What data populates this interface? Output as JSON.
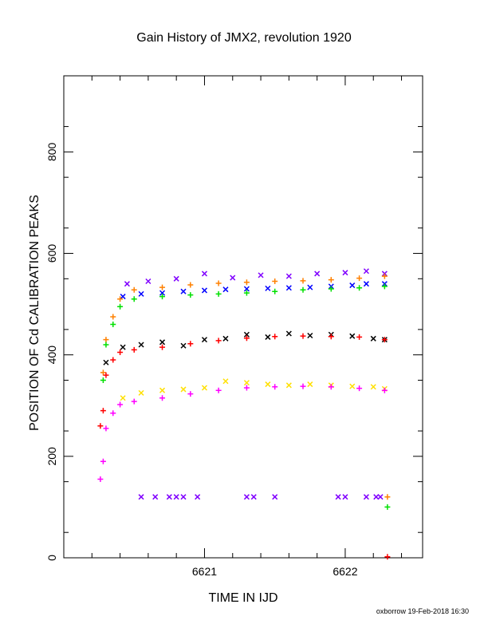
{
  "chart_data": {
    "type": "scatter",
    "title": "Gain History of JMX2, revolution 1920",
    "xlabel": "TIME IN IJD",
    "ylabel": "POSITION OF Cd CALIBRATION PEAKS",
    "xlim": [
      6620.0,
      6622.55
    ],
    "ylim": [
      0,
      950
    ],
    "x_ticks": [
      6621,
      6622
    ],
    "y_ticks": [
      0,
      200,
      400,
      600,
      800
    ],
    "grid": false,
    "legend": "none",
    "footer": "oxborrow 19-Feb-2018 16:30",
    "series": [
      {
        "marker": "x",
        "color": "#0000ff",
        "points": [
          [
            6620.42,
            515
          ],
          [
            6620.55,
            520
          ],
          [
            6620.7,
            522
          ],
          [
            6620.85,
            525
          ],
          [
            6621.0,
            527
          ],
          [
            6621.15,
            529
          ],
          [
            6621.3,
            530
          ],
          [
            6621.45,
            531
          ],
          [
            6621.6,
            532
          ],
          [
            6621.75,
            533
          ],
          [
            6621.9,
            535
          ],
          [
            6622.05,
            537
          ],
          [
            6622.15,
            540
          ],
          [
            6622.28,
            540
          ]
        ]
      },
      {
        "marker": "x",
        "color": "#8000ff",
        "points": [
          [
            6620.45,
            540
          ],
          [
            6620.6,
            545
          ],
          [
            6620.8,
            550
          ],
          [
            6621.0,
            560
          ],
          [
            6621.2,
            552
          ],
          [
            6621.4,
            557
          ],
          [
            6621.6,
            555
          ],
          [
            6621.8,
            560
          ],
          [
            6622.0,
            562
          ],
          [
            6622.15,
            565
          ],
          [
            6622.28,
            560
          ]
        ]
      },
      {
        "marker": "x",
        "color": "#000000",
        "points": [
          [
            6620.3,
            385
          ],
          [
            6620.42,
            415
          ],
          [
            6620.55,
            420
          ],
          [
            6620.7,
            425
          ],
          [
            6620.85,
            418
          ],
          [
            6621.0,
            430
          ],
          [
            6621.15,
            432
          ],
          [
            6621.3,
            440
          ],
          [
            6621.45,
            435
          ],
          [
            6621.6,
            442
          ],
          [
            6621.75,
            438
          ],
          [
            6621.9,
            440
          ],
          [
            6622.05,
            437
          ],
          [
            6622.2,
            432
          ],
          [
            6622.28,
            430
          ]
        ]
      },
      {
        "marker": "x",
        "color": "#ffe000",
        "points": [
          [
            6620.42,
            315
          ],
          [
            6620.55,
            325
          ],
          [
            6620.7,
            330
          ],
          [
            6620.85,
            332
          ],
          [
            6621.0,
            335
          ],
          [
            6621.15,
            348
          ],
          [
            6621.3,
            345
          ],
          [
            6621.45,
            342
          ],
          [
            6621.6,
            340
          ],
          [
            6621.75,
            342
          ],
          [
            6621.9,
            340
          ],
          [
            6622.05,
            338
          ],
          [
            6622.2,
            337
          ],
          [
            6622.28,
            333
          ]
        ]
      },
      {
        "marker": "+",
        "color": "#ff8000",
        "points": [
          [
            6620.28,
            365
          ],
          [
            6620.3,
            430
          ],
          [
            6620.35,
            475
          ],
          [
            6620.4,
            510
          ],
          [
            6620.5,
            528
          ],
          [
            6620.7,
            533
          ],
          [
            6620.9,
            538
          ],
          [
            6621.1,
            541
          ],
          [
            6621.3,
            543
          ],
          [
            6621.5,
            545
          ],
          [
            6621.7,
            546
          ],
          [
            6621.9,
            548
          ],
          [
            6622.1,
            551
          ],
          [
            6622.28,
            555
          ]
        ]
      },
      {
        "marker": "+",
        "color": "#00e000",
        "points": [
          [
            6620.28,
            350
          ],
          [
            6620.3,
            420
          ],
          [
            6620.35,
            460
          ],
          [
            6620.4,
            495
          ],
          [
            6620.5,
            510
          ],
          [
            6620.7,
            515
          ],
          [
            6620.9,
            518
          ],
          [
            6621.1,
            520
          ],
          [
            6621.3,
            522
          ],
          [
            6621.5,
            525
          ],
          [
            6621.7,
            528
          ],
          [
            6621.9,
            530
          ],
          [
            6622.1,
            532
          ],
          [
            6622.28,
            535
          ]
        ]
      },
      {
        "marker": "+",
        "color": "#ff0000",
        "points": [
          [
            6620.26,
            260
          ],
          [
            6620.28,
            290
          ],
          [
            6620.3,
            360
          ],
          [
            6620.35,
            390
          ],
          [
            6620.4,
            405
          ],
          [
            6620.5,
            410
          ],
          [
            6620.7,
            415
          ],
          [
            6620.9,
            422
          ],
          [
            6621.1,
            428
          ],
          [
            6621.3,
            433
          ],
          [
            6621.5,
            436
          ],
          [
            6621.7,
            437
          ],
          [
            6621.9,
            436
          ],
          [
            6622.1,
            435
          ],
          [
            6622.28,
            430
          ]
        ]
      },
      {
        "marker": "+",
        "color": "#ff00ff",
        "points": [
          [
            6620.26,
            155
          ],
          [
            6620.28,
            190
          ],
          [
            6620.3,
            255
          ],
          [
            6620.35,
            285
          ],
          [
            6620.4,
            302
          ],
          [
            6620.5,
            308
          ],
          [
            6620.7,
            315
          ],
          [
            6620.9,
            323
          ],
          [
            6621.1,
            330
          ],
          [
            6621.3,
            335
          ],
          [
            6621.5,
            337
          ],
          [
            6621.7,
            338
          ],
          [
            6621.9,
            337
          ],
          [
            6622.1,
            334
          ],
          [
            6622.28,
            330
          ]
        ]
      },
      {
        "marker": "x",
        "color": "#8000ff",
        "points": [
          [
            6620.55,
            120
          ],
          [
            6620.65,
            120
          ],
          [
            6620.75,
            120
          ],
          [
            6620.8,
            120
          ],
          [
            6620.85,
            120
          ],
          [
            6620.95,
            120
          ],
          [
            6621.3,
            120
          ],
          [
            6621.35,
            120
          ],
          [
            6621.5,
            120
          ],
          [
            6621.95,
            120
          ],
          [
            6622.0,
            120
          ],
          [
            6622.15,
            120
          ],
          [
            6622.22,
            120
          ],
          [
            6622.25,
            120
          ]
        ]
      },
      {
        "marker": "+",
        "color": "#ff8000",
        "points": [
          [
            6622.3,
            120
          ]
        ]
      },
      {
        "marker": "+",
        "color": "#00e000",
        "points": [
          [
            6622.3,
            100
          ]
        ]
      },
      {
        "marker": "+",
        "color": "#ff0000",
        "points": [
          [
            6622.3,
            2
          ]
        ]
      }
    ]
  }
}
